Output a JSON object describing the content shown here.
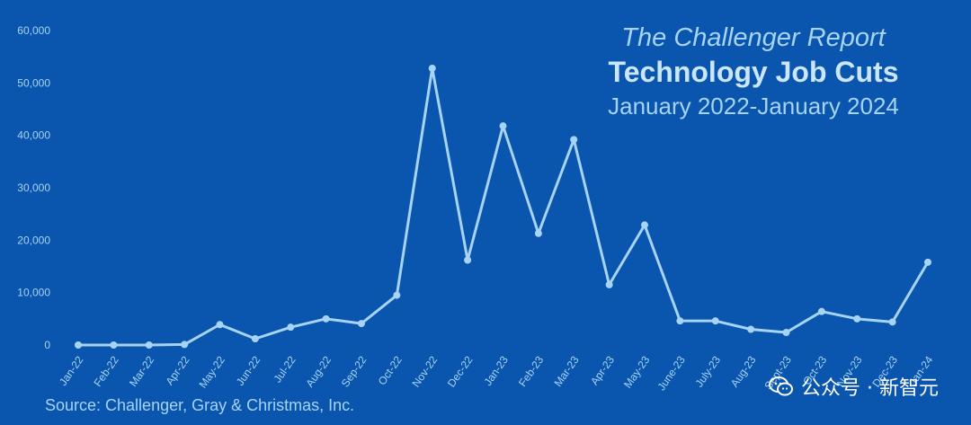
{
  "header": {
    "subtitle": "The Challenger Report",
    "title": "Technology Job Cuts",
    "period": "January 2022-January 2024"
  },
  "source": "Source: Challenger, Gray & Christmas, Inc.",
  "watermark": {
    "text": "公众号 · 新智元",
    "icon": "wechat-icon"
  },
  "colors": {
    "background": "#0a55ad",
    "line": "#a7d4f5",
    "text": "#a7d4f5"
  },
  "chart_data": {
    "type": "line",
    "title": "Technology Job Cuts",
    "xlabel": "",
    "ylabel": "",
    "ylim": [
      0,
      60000
    ],
    "yticks": [
      0,
      10000,
      20000,
      30000,
      40000,
      50000,
      60000
    ],
    "ytick_labels": [
      "0",
      "10,000",
      "20,000",
      "30,000",
      "40,000",
      "50,000",
      "60,000"
    ],
    "grid": false,
    "legend": "none",
    "categories": [
      "Jan-22",
      "Feb-22",
      "Mar-22",
      "Apr-22",
      "May-22",
      "Jun-22",
      "Jul-22",
      "Aug-22",
      "Sep-22",
      "Oct-22",
      "Nov-22",
      "Dec-22",
      "Jan-23",
      "Feb-23",
      "Mar-23",
      "Apr-23",
      "May-23",
      "June-23",
      "July-23",
      "Aug-23",
      "Sept-23",
      "Oct-23",
      "Nov-23",
      "Dec-23",
      "Jan-24"
    ],
    "series": [
      {
        "values": [
          0,
          0,
          0,
          100,
          3900,
          1200,
          3400,
          5000,
          4100,
          9500,
          52800,
          16200,
          41800,
          21300,
          39200,
          11500,
          22900,
          4600,
          4600,
          3000,
          2400,
          6400,
          5000,
          4400,
          15800
        ]
      }
    ]
  }
}
